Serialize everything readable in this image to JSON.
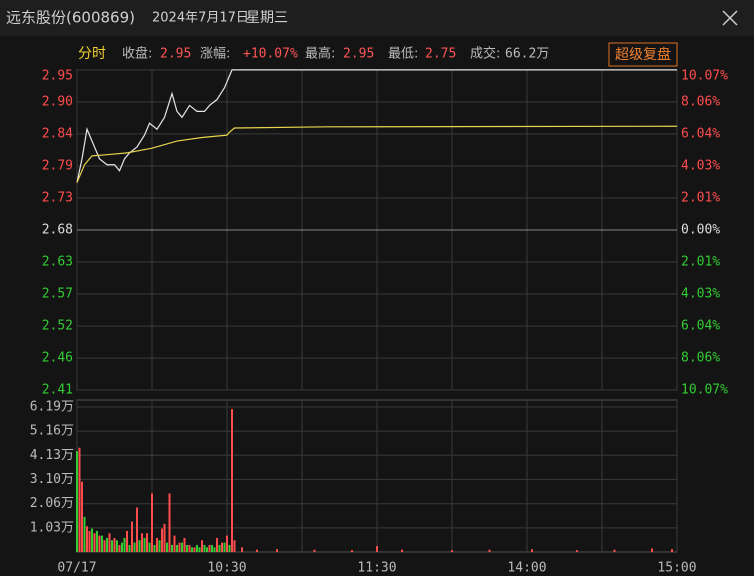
{
  "header": {
    "name": "远东股份(600869)",
    "date": "2024年7月17日",
    "weekday": "星期三"
  },
  "info": {
    "mode": "分时",
    "items": [
      {
        "label": "收盘:",
        "value": "2.95"
      },
      {
        "label": "涨幅:",
        "value": "+10.07%"
      },
      {
        "label": "最高:",
        "value": "2.95"
      },
      {
        "label": "最低:",
        "value": "2.75"
      },
      {
        "label": "成交:",
        "value": "66.2万"
      }
    ],
    "button": "超级复盘"
  },
  "chart_data": [
    {
      "type": "line",
      "xlim": [
        0,
        240
      ],
      "xgrid": [
        30,
        90,
        150,
        210
      ],
      "ylim": [
        2.4102,
        2.9498
      ],
      "yticks": [
        {
          "value": 2.9498,
          "label": "2.95"
        },
        {
          "value": 2.896,
          "label": "2.90"
        },
        {
          "value": 2.842,
          "label": "2.84"
        },
        {
          "value": 2.788,
          "label": "2.79"
        },
        {
          "value": 2.734,
          "label": "2.73"
        },
        2.68,
        {
          "value": 2.626,
          "label": "2.63"
        },
        {
          "value": 2.572,
          "label": "2.57"
        },
        {
          "value": 2.518,
          "label": "2.52"
        },
        {
          "value": 2.464,
          "label": "2.46"
        },
        {
          "value": 2.4102,
          "label": "2.41"
        }
      ],
      "y2lim": [
        -10.07,
        10.07
      ],
      "y2ticks": [
        {
          "value": 10.07,
          "label": "10.07%"
        },
        {
          "value": 8.06,
          "label": "8.06%"
        },
        {
          "value": 6.04,
          "label": "6.04%"
        },
        {
          "value": 4.03,
          "label": "4.03%"
        },
        {
          "value": 2.01,
          "label": "2.01%"
        },
        {
          "value": 0,
          "label": "0.00%"
        },
        {
          "value": -2.01,
          "label": "2.01%"
        },
        {
          "value": -4.03,
          "label": "4.03%"
        },
        {
          "value": -6.04,
          "label": "6.04%"
        },
        {
          "value": -8.06,
          "label": "8.06%"
        },
        {
          "value": -10.07,
          "label": "10.07%"
        }
      ],
      "up_color": "#ff4d4d",
      "down_color": "#33cc33",
      "flat_color": "#dddddd",
      "grid": true,
      "series": [
        {
          "color": "#e6e6e6",
          "x": [
            0,
            2,
            4,
            6,
            9,
            12,
            15,
            17,
            19,
            21,
            24,
            27,
            29,
            32,
            35,
            38,
            40,
            42,
            45,
            48,
            51,
            53,
            56,
            59,
            62,
            240
          ],
          "values": [
            2.76,
            2.8,
            2.85,
            2.83,
            2.8,
            2.79,
            2.79,
            2.78,
            2.8,
            2.81,
            2.82,
            2.84,
            2.86,
            2.85,
            2.87,
            2.91,
            2.88,
            2.87,
            2.89,
            2.88,
            2.88,
            2.89,
            2.9,
            2.92,
            2.95,
            2.95
          ]
        },
        {
          "color": "#e8d44d",
          "x": [
            0,
            3,
            6,
            12,
            20,
            30,
            40,
            50,
            60,
            61,
            63,
            100,
            240
          ],
          "values": [
            2.76,
            2.79,
            2.805,
            2.807,
            2.81,
            2.818,
            2.83,
            2.836,
            2.84,
            2.845,
            2.852,
            2.854,
            2.855
          ]
        }
      ]
    },
    {
      "type": "bar",
      "xlim": [
        0,
        240
      ],
      "xgrid": [
        30,
        90,
        150,
        210
      ],
      "xticks": [
        {
          "value": 0,
          "label": "07/17"
        },
        {
          "value": 60,
          "label": "10:30"
        },
        {
          "value": 120,
          "label": "11:30"
        },
        {
          "value": 180,
          "label": "14:00"
        },
        {
          "value": 240,
          "label": "15:00"
        }
      ],
      "ylim": [
        0,
        6.19
      ],
      "yticks": [
        {
          "value": 6.19,
          "label": "6.19万"
        },
        {
          "value": 5.16,
          "label": "5.16万"
        },
        {
          "value": 4.13,
          "label": "4.13万"
        },
        {
          "value": 3.1,
          "label": "3.10万"
        },
        {
          "value": 2.06,
          "label": "2.06万"
        },
        {
          "value": 1.03,
          "label": "1.03万"
        }
      ],
      "grid": true,
      "series": [
        {
          "color": "#ff4d4d",
          "x": [
            1,
            2,
            4,
            5,
            7,
            9,
            11,
            13,
            15,
            17,
            20,
            22,
            24,
            26,
            28,
            30,
            32,
            34,
            35,
            37,
            39,
            41,
            43,
            45,
            47,
            50,
            53,
            56,
            58,
            60,
            62,
            63,
            66,
            72,
            80,
            95,
            110,
            120,
            130,
            150,
            165,
            182,
            200,
            215,
            230,
            238
          ],
          "values": [
            4.45,
            3.0,
            1.1,
            0.9,
            0.8,
            0.7,
            0.5,
            0.8,
            0.6,
            0.3,
            0.9,
            1.3,
            1.9,
            0.8,
            0.8,
            2.5,
            0.6,
            1.0,
            1.2,
            2.5,
            0.7,
            0.4,
            0.6,
            0.3,
            0.2,
            0.5,
            0.3,
            0.6,
            0.4,
            0.7,
            6.1,
            0.5,
            0.2,
            0.1,
            0.12,
            0.1,
            0.08,
            0.25,
            0.1,
            0.08,
            0.1,
            0.12,
            0.08,
            0.1,
            0.15,
            0.12
          ]
        },
        {
          "color": "#33cc33",
          "x": [
            0,
            3,
            6,
            8,
            10,
            12,
            14,
            16,
            18,
            19,
            21,
            23,
            25,
            27,
            29,
            31,
            33,
            36,
            38,
            40,
            42,
            44,
            46,
            48,
            49,
            51,
            52,
            54,
            55,
            57,
            59,
            61
          ],
          "values": [
            4.3,
            1.5,
            1.0,
            0.9,
            0.7,
            0.6,
            0.5,
            0.5,
            0.4,
            0.6,
            0.3,
            0.4,
            0.5,
            0.6,
            0.4,
            0.3,
            0.5,
            0.4,
            0.3,
            0.3,
            0.4,
            0.3,
            0.2,
            0.3,
            0.2,
            0.3,
            0.2,
            0.3,
            0.2,
            0.3,
            0.4,
            0.3
          ]
        }
      ]
    }
  ]
}
